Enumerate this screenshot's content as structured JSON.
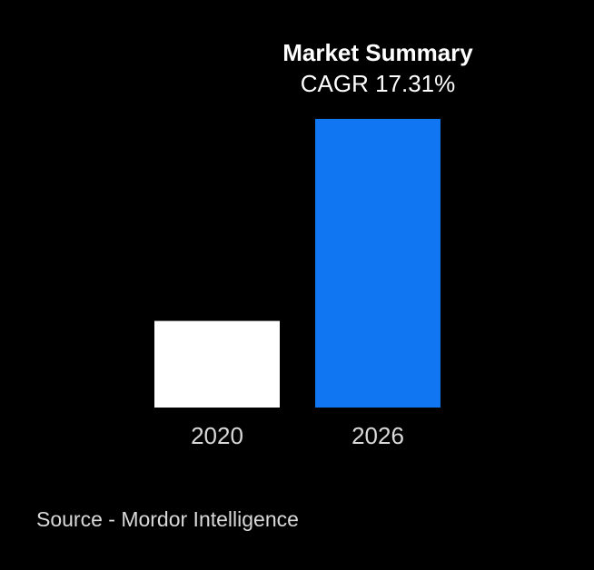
{
  "chart_data": {
    "type": "bar",
    "title": "Market Summary",
    "subtitle": "CAGR 17.31%",
    "categories": [
      "2020",
      "2026"
    ],
    "values": [
      30,
      100
    ],
    "ylim": [
      0,
      100
    ],
    "bar_colors": [
      "#ffffff",
      "#1176f2"
    ],
    "tick_label_color": "#d9d9d9",
    "grid": false,
    "legend": "none",
    "xlabel": "",
    "ylabel": ""
  },
  "source": "Source - Mordor Intelligence",
  "colors": {
    "background": "#000000",
    "text": "#ffffff",
    "muted_text": "#d9d9d9",
    "accent": "#1176f2"
  }
}
